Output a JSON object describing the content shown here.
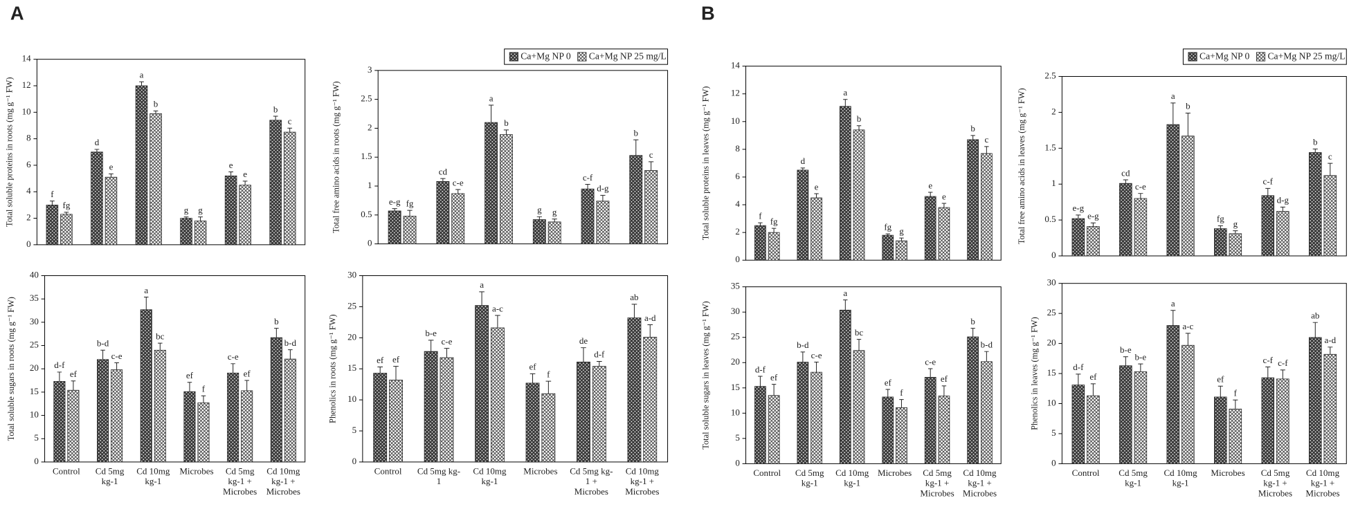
{
  "panel_labels": [
    "A",
    "B"
  ],
  "chart_data": [
    {
      "type": "bar",
      "ylabel": "Total soluble proteins in roots (mg g⁻¹ FW)",
      "ylim": [
        0,
        14
      ],
      "yticks": [
        0,
        2,
        4,
        6,
        8,
        10,
        12,
        14
      ],
      "series": [
        {
          "name": "Ca+Mg NP 0",
          "color": "#3a3a3a",
          "pattern": "dots",
          "values": [
            3.0,
            7.0,
            12.0,
            2.0,
            5.2,
            9.4
          ],
          "errors": [
            0.3,
            0.2,
            0.3,
            0.1,
            0.3,
            0.3
          ],
          "letters": [
            "f",
            "d",
            "a",
            "g",
            "e",
            "b"
          ]
        },
        {
          "name": "Ca+Mg NP 25 mg/L",
          "color": "#ffffff",
          "pattern": "crosshatch",
          "values": [
            2.3,
            5.1,
            9.9,
            1.8,
            4.5,
            8.5
          ],
          "errors": [
            0.15,
            0.25,
            0.2,
            0.3,
            0.3,
            0.3
          ],
          "letters": [
            "fg",
            "e",
            "b",
            "g",
            "e",
            "c"
          ]
        }
      ]
    },
    {
      "type": "bar",
      "ylabel": "Total free amino acids in roots (mg g⁻¹ FW)",
      "ylim": [
        0,
        3
      ],
      "yticks": [
        0,
        0.5,
        1,
        1.5,
        2,
        2.5,
        3
      ],
      "legend": "upper right",
      "series": [
        {
          "name": "Ca+Mg NP 0",
          "color": "#3a3a3a",
          "pattern": "dots",
          "values": [
            0.57,
            1.08,
            2.1,
            0.42,
            0.95,
            1.53
          ],
          "errors": [
            0.04,
            0.05,
            0.3,
            0.05,
            0.08,
            0.27
          ],
          "letters": [
            "e-g",
            "cd",
            "a",
            "g",
            "c-f",
            "b"
          ]
        },
        {
          "name": "Ca+Mg NP 25 mg/L",
          "color": "#ffffff",
          "pattern": "crosshatch",
          "values": [
            0.48,
            0.87,
            1.89,
            0.38,
            0.74,
            1.27
          ],
          "errors": [
            0.1,
            0.07,
            0.08,
            0.05,
            0.1,
            0.15
          ],
          "letters": [
            "fg",
            "c-e",
            "b",
            "g",
            "d-g",
            "c"
          ]
        }
      ]
    },
    {
      "type": "bar",
      "ylabel": "Total soluble sugars in roots (mg g⁻¹ FW)",
      "ylim": [
        0,
        40
      ],
      "yticks": [
        0,
        5,
        10,
        15,
        20,
        25,
        30,
        35,
        40
      ],
      "categories": [
        "Control",
        "Cd 5mg kg-1",
        "Cd 10mg kg-1",
        "Microbes",
        "Cd 5mg kg-1 + Microbes",
        "Cd 10mg kg-1 + Microbes"
      ],
      "series": [
        {
          "name": "Ca+Mg NP 0",
          "color": "#3a3a3a",
          "pattern": "dots",
          "values": [
            17.3,
            22,
            32.7,
            15.1,
            19.1,
            26.7
          ],
          "errors": [
            2,
            2,
            2.7,
            2,
            2,
            2
          ],
          "letters": [
            "d-f",
            "b-d",
            "a",
            "ef",
            "c-e",
            "b"
          ]
        },
        {
          "name": "Ca+Mg NP 25 mg/L",
          "color": "#ffffff",
          "pattern": "crosshatch",
          "values": [
            15.4,
            19.8,
            24,
            12.7,
            15.3,
            22.1
          ],
          "errors": [
            2,
            1.5,
            1.5,
            1.5,
            2.2,
            2
          ],
          "letters": [
            "ef",
            "c-e",
            "bc",
            "f",
            "ef",
            "b-d"
          ]
        }
      ]
    },
    {
      "type": "bar",
      "ylabel": "Phenolics in roots (mg g⁻¹ FW)",
      "ylim": [
        0,
        30
      ],
      "yticks": [
        0,
        5,
        10,
        15,
        20,
        25,
        30
      ],
      "categories": [
        "Control",
        "Cd 5mg kg-1",
        "Cd 10mg kg-1",
        "Microbes",
        "Cd 5mg kg-1 + Microbes",
        "Cd 10mg kg-1 + Microbes"
      ],
      "series": [
        {
          "name": "Ca+Mg NP 0",
          "color": "#3a3a3a",
          "pattern": "dots",
          "values": [
            14.3,
            17.8,
            25.2,
            12.7,
            16.1,
            23.2
          ],
          "errors": [
            1,
            1.8,
            2.2,
            1.5,
            2.3,
            2.2
          ],
          "letters": [
            "ef",
            "b-e",
            "a",
            "ef",
            "de",
            "ab"
          ]
        },
        {
          "name": "Ca+Mg NP 25 mg/L",
          "color": "#ffffff",
          "pattern": "crosshatch",
          "values": [
            13.2,
            16.8,
            21.6,
            11,
            15.4,
            20.1
          ],
          "errors": [
            2.2,
            1.5,
            2,
            2,
            0.8,
            2
          ],
          "letters": [
            "ef",
            "c-e",
            "a-c",
            "f",
            "d-f",
            "a-d"
          ]
        }
      ]
    },
    {
      "type": "bar",
      "ylabel": "Total soluble proteins in leaves (mg g⁻¹ FW)",
      "ylim": [
        0,
        14
      ],
      "yticks": [
        0,
        2,
        4,
        6,
        8,
        10,
        12,
        14
      ],
      "series": [
        {
          "name": "Ca+Mg NP 0",
          "color": "#3a3a3a",
          "pattern": "dots",
          "values": [
            2.5,
            6.5,
            11.1,
            1.8,
            4.6,
            8.7
          ],
          "errors": [
            0.2,
            0.15,
            0.5,
            0.1,
            0.3,
            0.3
          ],
          "letters": [
            "f",
            "d",
            "a",
            "fg",
            "e",
            "b"
          ]
        },
        {
          "name": "Ca+Mg NP 25 mg/L",
          "color": "#ffffff",
          "pattern": "crosshatch",
          "values": [
            2.0,
            4.5,
            9.4,
            1.4,
            3.8,
            7.7
          ],
          "errors": [
            0.3,
            0.3,
            0.3,
            0.2,
            0.3,
            0.5
          ],
          "letters": [
            "fg",
            "e",
            "b",
            "g",
            "e",
            "c"
          ]
        }
      ]
    },
    {
      "type": "bar",
      "ylabel": "Total free amino acids in leaves (mg g⁻¹ FW)",
      "ylim": [
        0,
        2.5
      ],
      "yticks": [
        0,
        0.5,
        1,
        1.5,
        2,
        2.5
      ],
      "legend": "upper right",
      "series": [
        {
          "name": "Ca+Mg NP 0",
          "color": "#3a3a3a",
          "pattern": "dots",
          "values": [
            0.52,
            1.01,
            1.83,
            0.38,
            0.84,
            1.44
          ],
          "errors": [
            0.05,
            0.05,
            0.3,
            0.04,
            0.1,
            0.05
          ],
          "letters": [
            "e-g",
            "cd",
            "a",
            "fg",
            "c-f",
            "b"
          ]
        },
        {
          "name": "Ca+Mg NP 25 mg/L",
          "color": "#ffffff",
          "pattern": "crosshatch",
          "values": [
            0.41,
            0.8,
            1.67,
            0.31,
            0.62,
            1.12
          ],
          "errors": [
            0.05,
            0.07,
            0.32,
            0.04,
            0.06,
            0.17
          ],
          "letters": [
            "e-g",
            "c-e",
            "b",
            "g",
            "d-g",
            "c"
          ]
        }
      ]
    },
    {
      "type": "bar",
      "ylabel": "Total soluble sugars in leaves (mg g⁻¹ FW)",
      "ylim": [
        0,
        35
      ],
      "yticks": [
        0,
        5,
        10,
        15,
        20,
        25,
        30,
        35
      ],
      "categories": [
        "Control",
        "Cd 5mg kg-1",
        "Cd 10mg kg-1",
        "Microbes",
        "Cd 5mg kg-1 + Microbes",
        "Cd 10mg kg-1 + Microbes"
      ],
      "series": [
        {
          "name": "Ca+Mg NP 0",
          "color": "#3a3a3a",
          "pattern": "dots",
          "values": [
            15.3,
            20.1,
            30.4,
            13.2,
            17.1,
            25.1
          ],
          "errors": [
            2,
            2,
            2,
            1.5,
            1.7,
            1.7
          ],
          "letters": [
            "d-f",
            "b-d",
            "a",
            "ef",
            "c-e",
            "b"
          ]
        },
        {
          "name": "Ca+Mg NP 25 mg/L",
          "color": "#ffffff",
          "pattern": "crosshatch",
          "values": [
            13.5,
            18.1,
            22.4,
            11.1,
            13.4,
            20.2
          ],
          "errors": [
            2.2,
            2,
            2.2,
            1.6,
            2,
            2
          ],
          "letters": [
            "ef",
            "c-e",
            "bc",
            "f",
            "ef",
            "b-d"
          ]
        }
      ]
    },
    {
      "type": "bar",
      "ylabel": "Phenolics in leaves (mg g⁻¹ FW)",
      "ylim": [
        0,
        30
      ],
      "yticks": [
        0,
        5,
        10,
        15,
        20,
        25,
        30
      ],
      "categories": [
        "Control",
        "Cd 5mg kg-1",
        "Cd 10mg kg-1",
        "Microbes",
        "Cd 5mg kg-1 + Microbes",
        "Cd 10mg kg-1 + Microbes"
      ],
      "series": [
        {
          "name": "Ca+Mg NP 0",
          "color": "#3a3a3a",
          "pattern": "dots",
          "values": [
            13.1,
            16.3,
            23,
            11.1,
            14.3,
            21
          ],
          "errors": [
            1.8,
            1.5,
            2.5,
            1.8,
            1.8,
            2.5
          ],
          "letters": [
            "d-f",
            "b-e",
            "a",
            "ef",
            "c-f",
            "ab"
          ]
        },
        {
          "name": "Ca+Mg NP 25 mg/L",
          "color": "#ffffff",
          "pattern": "crosshatch",
          "values": [
            11.3,
            15.3,
            19.7,
            9.1,
            14.1,
            18.2
          ],
          "errors": [
            2,
            1.3,
            2,
            1.5,
            1.5,
            1.2
          ],
          "letters": [
            "ef",
            "b-e",
            "a-c",
            "f",
            "c-f",
            "a-d"
          ]
        }
      ]
    }
  ]
}
